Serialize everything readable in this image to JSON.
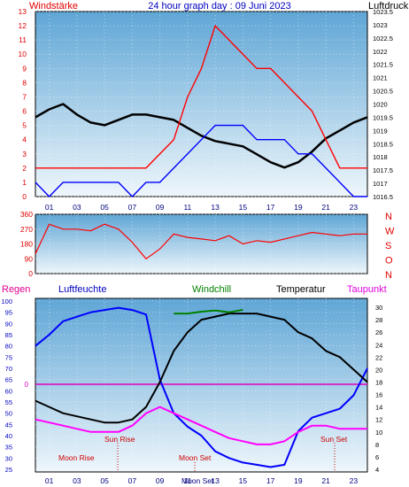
{
  "chart_data": [
    {
      "type": "line",
      "title": "24 hour graph day : 09 Juni 2023",
      "left_axis_label": "Windstärke",
      "right_axis_label": "Luftdruck",
      "x_ticks": [
        "01",
        "03",
        "05",
        "07",
        "09",
        "11",
        "13",
        "15",
        "17",
        "19",
        "21",
        "23"
      ],
      "left_ticks": [
        "0",
        "1",
        "2",
        "3",
        "4",
        "5",
        "6",
        "7",
        "8",
        "9",
        "10",
        "11",
        "12",
        "13"
      ],
      "right_ticks": [
        "1016.5",
        "1017",
        "1017.5",
        "1018",
        "1018.5",
        "1019",
        "1019.5",
        "1020",
        "1020.5",
        "1021",
        "1021.5",
        "1022",
        "1022.5",
        "1023",
        "1023.5"
      ],
      "ylim_left": [
        0,
        13
      ],
      "ylim_right": [
        1016.5,
        1023.5
      ],
      "series": [
        {
          "name": "Luftdruck",
          "color": "#000000",
          "x": [
            0,
            1,
            2,
            3,
            4,
            5,
            6,
            7,
            8,
            9,
            10,
            11,
            12,
            13,
            14,
            15,
            16,
            17,
            18,
            19,
            20,
            21,
            22,
            23,
            24
          ],
          "values": [
            1019.5,
            1019.8,
            1020.0,
            1019.6,
            1019.3,
            1019.2,
            1019.4,
            1019.6,
            1019.6,
            1019.5,
            1019.4,
            1019.1,
            1018.8,
            1018.6,
            1018.5,
            1018.4,
            1018.1,
            1017.8,
            1017.6,
            1017.8,
            1018.2,
            1018.7,
            1019.0,
            1019.3,
            1019.5
          ]
        },
        {
          "name": "Windstärke (Böen)",
          "color": "#ff0000",
          "x": [
            0,
            1,
            2,
            3,
            4,
            5,
            6,
            7,
            8,
            9,
            10,
            11,
            12,
            13,
            14,
            15,
            16,
            17,
            18,
            19,
            20,
            21,
            22,
            23,
            24
          ],
          "values": [
            2,
            2,
            2,
            2,
            2,
            2,
            2,
            2,
            2,
            3,
            4,
            7,
            9,
            12,
            11,
            10,
            9,
            9,
            8,
            7,
            6,
            4,
            2,
            2,
            2
          ]
        },
        {
          "name": "Windstärke (Mittel)",
          "color": "#0000ff",
          "x": [
            0,
            1,
            2,
            3,
            4,
            5,
            6,
            7,
            8,
            9,
            10,
            11,
            12,
            13,
            14,
            15,
            16,
            17,
            18,
            19,
            20,
            21,
            22,
            23,
            24
          ],
          "values": [
            1,
            0,
            1,
            1,
            1,
            1,
            1,
            0,
            1,
            1,
            2,
            3,
            4,
            5,
            5,
            5,
            4,
            4,
            4,
            3,
            3,
            2,
            1,
            0,
            0
          ]
        }
      ]
    },
    {
      "type": "line",
      "left_ticks": [
        "0",
        "90",
        "180",
        "270",
        "360"
      ],
      "right_ticks": [
        "N",
        "W",
        "S",
        "O",
        "N"
      ],
      "x_ticks": [
        "01",
        "03",
        "05",
        "07",
        "09",
        "11",
        "13",
        "15",
        "17",
        "19",
        "21",
        "23"
      ],
      "ylim": [
        0,
        360
      ],
      "series": [
        {
          "name": "Windrichtung",
          "color": "#ff0000",
          "x": [
            0,
            1,
            2,
            3,
            4,
            5,
            6,
            7,
            8,
            9,
            10,
            11,
            12,
            13,
            14,
            15,
            16,
            17,
            18,
            19,
            20,
            21,
            22,
            23,
            24
          ],
          "values": [
            120,
            300,
            270,
            270,
            260,
            300,
            270,
            190,
            90,
            150,
            240,
            220,
            210,
            200,
            230,
            180,
            200,
            190,
            210,
            230,
            250,
            240,
            230,
            240,
            240
          ]
        }
      ]
    },
    {
      "type": "line",
      "legend": [
        "Regen",
        "Luftfeuchte",
        "Windchill",
        "Temperatur",
        "Taupunkt"
      ],
      "left_ticks": [
        "25",
        "30",
        "35",
        "40",
        "45",
        "50",
        "55",
        "60",
        "65",
        "70",
        "75",
        "80",
        "85",
        "90",
        "95",
        "100"
      ],
      "right_ticks": [
        "4",
        "6",
        "8",
        "10",
        "12",
        "14",
        "16",
        "18",
        "20",
        "22",
        "24",
        "26",
        "28",
        "30"
      ],
      "rain_tick": "0",
      "ylim_left": [
        25,
        100
      ],
      "ylim_right": [
        4,
        31
      ],
      "annotations": [
        "Sun Rise",
        "Moon Rise",
        "Moon Set",
        "Sun Set",
        "Moon Set"
      ],
      "x_ticks": [
        "01",
        "03",
        "05",
        "07",
        "09",
        "11",
        "13",
        "15",
        "17",
        "19",
        "21",
        "23"
      ],
      "series": [
        {
          "name": "Luftfeuchte",
          "color": "#0000ff",
          "x": [
            0,
            1,
            2,
            3,
            4,
            5,
            6,
            7,
            8,
            9,
            10,
            11,
            12,
            13,
            14,
            15,
            16,
            17,
            18,
            19,
            20,
            21,
            22,
            23,
            24
          ],
          "values": [
            80,
            85,
            91,
            93,
            95,
            96,
            97,
            96,
            94,
            65,
            50,
            44,
            40,
            33,
            30,
            28,
            27,
            26,
            27,
            42,
            48,
            50,
            52,
            58,
            70
          ]
        },
        {
          "name": "Temperatur",
          "color": "#000000",
          "x": [
            0,
            1,
            2,
            3,
            4,
            5,
            6,
            7,
            8,
            9,
            10,
            11,
            12,
            13,
            14,
            15,
            16,
            17,
            18,
            19,
            20,
            21,
            22,
            23,
            24
          ],
          "values": [
            15,
            14,
            13,
            12.5,
            12,
            11.5,
            11.5,
            12,
            14,
            18,
            23,
            26,
            28,
            28.5,
            29,
            29,
            29,
            28.5,
            28,
            26,
            25,
            23,
            22,
            20,
            18
          ]
        },
        {
          "name": "Windchill",
          "color": "#008000",
          "x": [
            10,
            11,
            12,
            13,
            14,
            15
          ],
          "values": [
            29,
            29,
            29.3,
            29.5,
            29.2,
            29.6
          ]
        },
        {
          "name": "Taupunkt",
          "color": "#ff00ff",
          "x": [
            0,
            1,
            2,
            3,
            4,
            5,
            6,
            7,
            8,
            9,
            10,
            11,
            12,
            13,
            14,
            15,
            16,
            17,
            18,
            19,
            20,
            21,
            22,
            23,
            24
          ],
          "values": [
            12,
            11.5,
            11,
            10.5,
            10,
            10,
            10,
            11,
            13,
            14,
            13,
            12,
            11,
            10,
            9,
            8.5,
            8,
            8,
            8.5,
            10,
            11,
            11,
            10.5,
            10.5,
            10.5
          ]
        }
      ]
    }
  ]
}
